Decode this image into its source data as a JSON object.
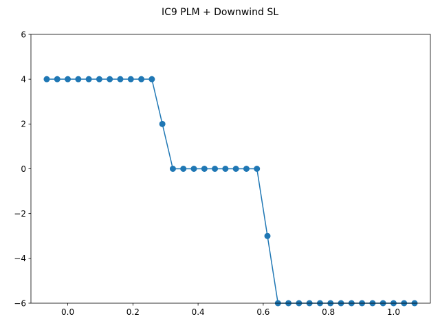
{
  "chart_data": {
    "type": "line",
    "title": "IC9 PLM + Downwind SL",
    "xlabel": "",
    "ylabel": "",
    "xlim": [
      -0.113,
      1.113
    ],
    "ylim": [
      -6,
      6
    ],
    "x_ticks": [
      0.0,
      0.2,
      0.4,
      0.6,
      0.8,
      1.0
    ],
    "x_tick_labels": [
      "0.0",
      "0.2",
      "0.4",
      "0.6",
      "0.8",
      "1.0"
    ],
    "y_ticks": [
      -6,
      -4,
      -2,
      0,
      2,
      4,
      6
    ],
    "y_tick_labels": [
      "−6",
      "−4",
      "−2",
      "0",
      "2",
      "4",
      "6"
    ],
    "grid": false,
    "marker": "circle",
    "color": "#1f77b4",
    "series": [
      {
        "x": [
          -0.0645,
          -0.0323,
          0.0,
          0.0323,
          0.0645,
          0.0968,
          0.129,
          0.1613,
          0.1935,
          0.2258,
          0.2581,
          0.2903,
          0.3226,
          0.3548,
          0.3871,
          0.4194,
          0.4516,
          0.4839,
          0.5161,
          0.5484,
          0.5806,
          0.6129,
          0.6452,
          0.6774,
          0.7097,
          0.7419,
          0.7742,
          0.8065,
          0.8387,
          0.871,
          0.9032,
          0.9355,
          0.9677,
          1.0,
          1.0323,
          1.0645
        ],
        "y": [
          4,
          4,
          4,
          4,
          4,
          4,
          4,
          4,
          4,
          4,
          4,
          2,
          0,
          0,
          0,
          0,
          0,
          0,
          0,
          0,
          0,
          -3,
          -6,
          -6,
          -6,
          -6,
          -6,
          -6,
          -6,
          -6,
          -6,
          -6,
          -6,
          -6,
          -6,
          -6
        ]
      }
    ]
  }
}
